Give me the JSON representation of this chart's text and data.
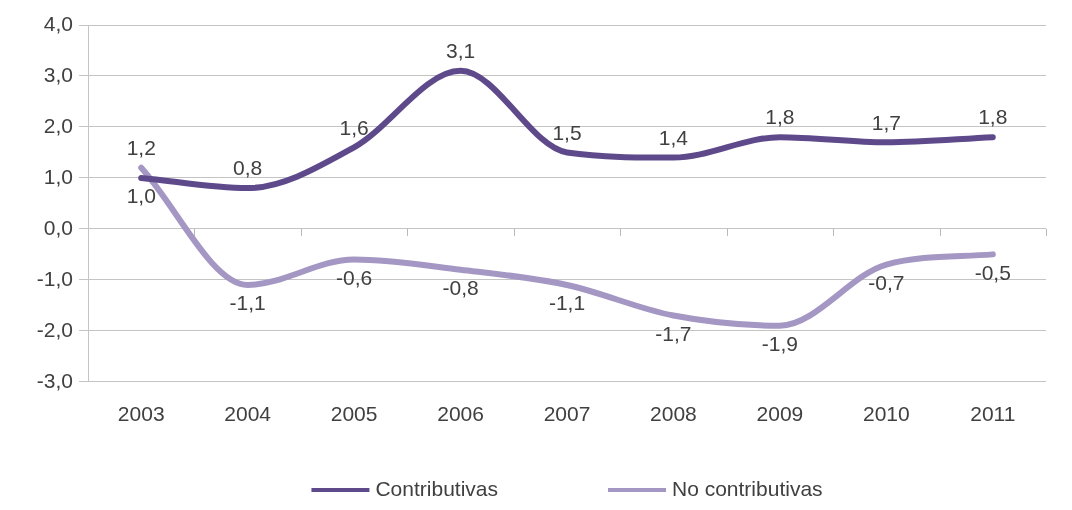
{
  "chart_data": {
    "type": "line",
    "categories": [
      "2003",
      "2004",
      "2005",
      "2006",
      "2007",
      "2008",
      "2009",
      "2010",
      "2011"
    ],
    "series": [
      {
        "name": "Contributivas",
        "color": "#5e4a8b",
        "values": [
          1.0,
          0.8,
          1.6,
          3.1,
          1.5,
          1.4,
          1.8,
          1.7,
          1.8
        ],
        "value_labels": [
          "1,0",
          "0,8",
          "1,6",
          "3,1",
          "1,5",
          "1,4",
          "1,8",
          "1,7",
          "1,8"
        ]
      },
      {
        "name": "No contributivas",
        "color": "#a497c4",
        "values": [
          1.2,
          -1.1,
          -0.6,
          -0.8,
          -1.1,
          -1.7,
          -1.9,
          -0.7,
          -0.5
        ],
        "value_labels": [
          "1,2",
          "-1,1",
          "-0,6",
          "-0,8",
          "-1,1",
          "-1,7",
          "-1,9",
          "-0,7",
          "-0,5"
        ]
      }
    ],
    "ylim": [
      -3,
      4
    ],
    "yticks": [
      {
        "value": -3,
        "label": "-3,0"
      },
      {
        "value": -2,
        "label": "-2,0"
      },
      {
        "value": -1,
        "label": "-1,0"
      },
      {
        "value": 0,
        "label": "0,0"
      },
      {
        "value": 1,
        "label": "1,0"
      },
      {
        "value": 2,
        "label": "2,0"
      },
      {
        "value": 3,
        "label": "3,0"
      },
      {
        "value": 4,
        "label": "4,0"
      }
    ],
    "grid": "y",
    "legend": "bottom",
    "marker": "none",
    "line_style": "solid"
  }
}
